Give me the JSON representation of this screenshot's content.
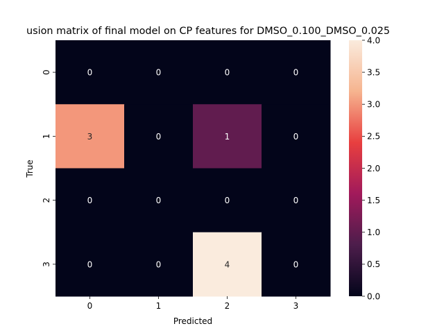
{
  "chart_data": {
    "type": "heatmap",
    "title": "usion matrix of final model on CP features for DMSO_0.100_DMSO_0.025",
    "xlabel": "Predicted",
    "ylabel": "True",
    "x_categories": [
      "0",
      "1",
      "2",
      "3"
    ],
    "y_categories": [
      "0",
      "1",
      "2",
      "3"
    ],
    "values": [
      [
        0,
        0,
        0,
        0
      ],
      [
        3,
        0,
        1,
        0
      ],
      [
        0,
        0,
        0,
        0
      ],
      [
        0,
        0,
        4,
        0
      ]
    ],
    "colorbar": {
      "range": [
        0.0,
        4.0
      ],
      "ticks": [
        "0.0",
        "0.5",
        "1.0",
        "1.5",
        "2.0",
        "2.5",
        "3.0",
        "3.5",
        "4.0"
      ],
      "colormap": "rocket",
      "colormap_stops": [
        "#03051a",
        "#4c1d4b",
        "#a11a5b",
        "#e83f3f",
        "#f6b48f",
        "#faebdd"
      ]
    }
  }
}
